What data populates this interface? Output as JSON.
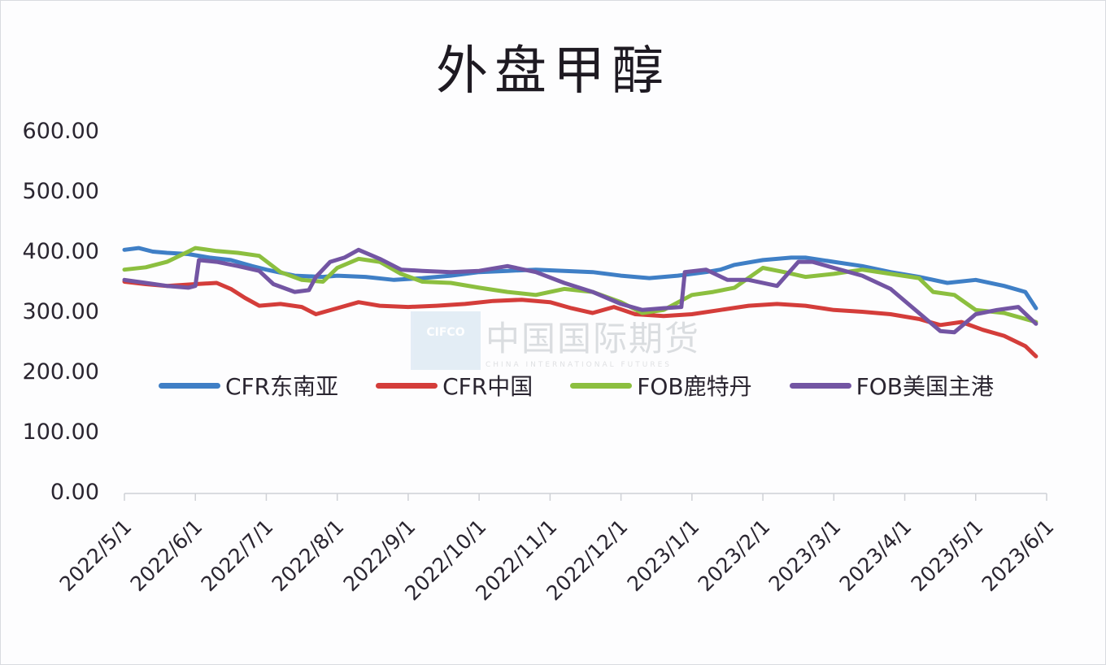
{
  "chart_data": {
    "type": "line",
    "title": "外盘甲醇",
    "xlabel": "",
    "ylabel": "",
    "ylim": [
      0,
      600
    ],
    "yticks": [
      "0.00",
      "100.00",
      "200.00",
      "300.00",
      "400.00",
      "500.00",
      "600.00"
    ],
    "xticks": [
      "2022/5/1",
      "2022/6/1",
      "2022/7/1",
      "2022/8/1",
      "2022/9/1",
      "2022/10/1",
      "2022/11/1",
      "2022/12/1",
      "2023/1/1",
      "2023/2/1",
      "2023/3/1",
      "2023/4/1",
      "2023/5/1",
      "2023/6/1"
    ],
    "grid": false,
    "legend_position": "inside-lower",
    "x_unit": "months since 2022/5/1",
    "series": [
      {
        "name": "CFR东南亚",
        "color": "#3f7fc6",
        "x": [
          0,
          0.2,
          0.4,
          0.6,
          0.9,
          1.2,
          1.5,
          1.8,
          2.0,
          2.4,
          2.8,
          3.0,
          3.4,
          3.8,
          4.2,
          4.6,
          5.0,
          5.4,
          5.8,
          6.2,
          6.6,
          7.0,
          7.4,
          7.8,
          8.2,
          8.4,
          8.6,
          9.0,
          9.4,
          9.6,
          10.0,
          10.4,
          10.8,
          11.2,
          11.6,
          12.0,
          12.4,
          12.7,
          12.85
        ],
        "y": [
          405,
          408,
          402,
          400,
          398,
          392,
          388,
          378,
          372,
          362,
          360,
          362,
          360,
          355,
          358,
          362,
          368,
          370,
          372,
          370,
          368,
          362,
          358,
          362,
          368,
          372,
          380,
          388,
          392,
          392,
          385,
          378,
          368,
          360,
          350,
          355,
          345,
          335,
          308
        ]
      },
      {
        "name": "CFR中国",
        "color": "#d43d3a",
        "x": [
          0,
          0.3,
          0.6,
          1.0,
          1.3,
          1.5,
          1.7,
          1.9,
          2.2,
          2.5,
          2.7,
          3.0,
          3.3,
          3.6,
          4.0,
          4.4,
          4.8,
          5.2,
          5.6,
          6.0,
          6.3,
          6.6,
          6.9,
          7.2,
          7.6,
          8.0,
          8.4,
          8.8,
          9.2,
          9.6,
          10.0,
          10.4,
          10.8,
          11.2,
          11.5,
          11.8,
          12.1,
          12.4,
          12.7,
          12.85
        ],
        "y": [
          352,
          348,
          345,
          348,
          350,
          340,
          325,
          312,
          315,
          310,
          298,
          308,
          318,
          312,
          310,
          312,
          315,
          320,
          322,
          318,
          308,
          300,
          310,
          298,
          295,
          298,
          305,
          312,
          315,
          312,
          305,
          302,
          298,
          290,
          280,
          285,
          272,
          262,
          245,
          228
        ]
      },
      {
        "name": "FOB鹿特丹",
        "color": "#8cbf3f",
        "x": [
          0,
          0.3,
          0.6,
          0.9,
          1.0,
          1.3,
          1.6,
          1.9,
          2.2,
          2.5,
          2.8,
          3.0,
          3.3,
          3.6,
          3.9,
          4.2,
          4.6,
          5.0,
          5.4,
          5.8,
          6.2,
          6.6,
          7.0,
          7.3,
          7.6,
          8.0,
          8.3,
          8.6,
          9.0,
          9.3,
          9.6,
          10.0,
          10.4,
          10.8,
          11.2,
          11.4,
          11.7,
          12.0,
          12.4,
          12.85
        ],
        "y": [
          372,
          376,
          385,
          402,
          408,
          403,
          400,
          395,
          368,
          355,
          352,
          375,
          390,
          385,
          365,
          352,
          350,
          342,
          335,
          330,
          340,
          335,
          318,
          300,
          305,
          330,
          335,
          342,
          375,
          368,
          360,
          365,
          372,
          365,
          358,
          335,
          330,
          305,
          300,
          285
        ]
      },
      {
        "name": "FOB美国主港",
        "color": "#7355a3",
        "x": [
          0,
          0.3,
          0.6,
          0.9,
          1.0,
          1.05,
          1.3,
          1.6,
          1.9,
          2.1,
          2.4,
          2.6,
          2.7,
          2.9,
          3.1,
          3.3,
          3.6,
          3.9,
          4.2,
          4.6,
          5.0,
          5.4,
          5.8,
          6.2,
          6.6,
          7.0,
          7.3,
          7.6,
          7.85,
          7.9,
          8.2,
          8.5,
          8.8,
          9.2,
          9.5,
          9.7,
          10.0,
          10.4,
          10.8,
          11.1,
          11.3,
          11.5,
          11.7,
          12.0,
          12.3,
          12.6,
          12.85
        ],
        "y": [
          355,
          350,
          345,
          342,
          345,
          388,
          385,
          378,
          370,
          348,
          335,
          338,
          360,
          385,
          392,
          405,
          390,
          372,
          370,
          368,
          370,
          378,
          368,
          350,
          335,
          315,
          305,
          308,
          310,
          368,
          372,
          355,
          355,
          345,
          385,
          385,
          375,
          362,
          340,
          310,
          290,
          270,
          268,
          298,
          305,
          310,
          282
        ]
      }
    ]
  },
  "title": "外盘甲醇",
  "watermark": {
    "cn": "中国国际期货",
    "en": "CHINA INTERNATIONAL FUTURES",
    "logo": "CIFCO"
  }
}
